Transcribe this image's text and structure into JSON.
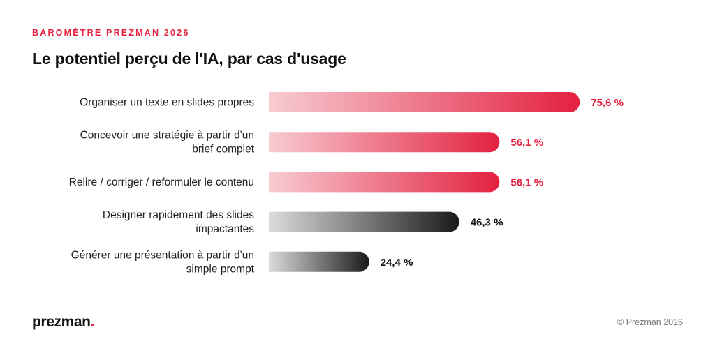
{
  "header": {
    "eyebrow": "BAROMÈTRE PREZMAN 2026",
    "title": "Le potentiel perçu de l'IA, par cas d'usage"
  },
  "chart_data": {
    "type": "bar",
    "orientation": "horizontal",
    "title": "Le potentiel perçu de l'IA, par cas d'usage",
    "categories": [
      [
        "Organiser un texte en slides propres"
      ],
      [
        "Concevoir une stratégie à partir d'un",
        "brief complet"
      ],
      [
        "Relire / corriger / reformuler le contenu"
      ],
      [
        "Designer rapidement des slides",
        "impactantes"
      ],
      [
        "Générer une présentation à partir d'un",
        "simple prompt"
      ]
    ],
    "values": [
      75.6,
      56.1,
      56.1,
      46.3,
      24.4
    ],
    "value_labels": [
      "75,6 %",
      "56,1 %",
      "56,1 %",
      "46,3 %",
      "24,4 %"
    ],
    "bar_styles": [
      "accent",
      "accent",
      "accent",
      "neutral",
      "neutral"
    ],
    "xlim": [
      0,
      100
    ],
    "grid": false,
    "legend": "none",
    "colors": {
      "accent_start": "#f7ccd3",
      "accent_end": "#e3203f",
      "accent_label": "#e3203f",
      "neutral_start": "#dcdcdc",
      "neutral_end": "#1a1a1a",
      "neutral_label": "#111111"
    }
  },
  "footer": {
    "logo": "prezman",
    "logo_dot": ".",
    "copyright": "© Prezman 2026"
  }
}
